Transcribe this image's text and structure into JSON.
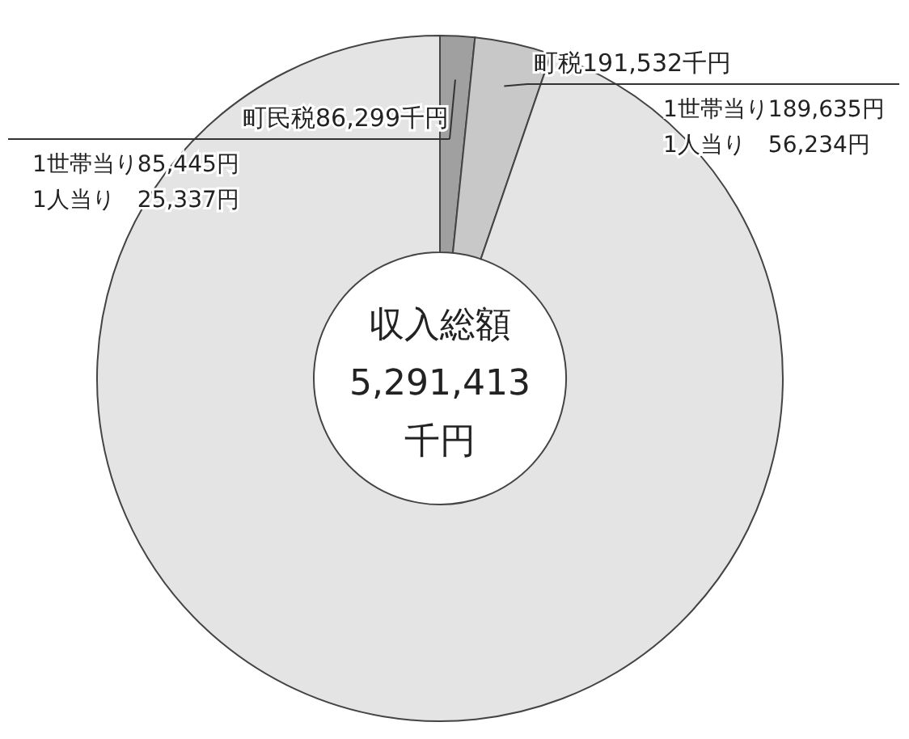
{
  "chart_data": {
    "type": "donut",
    "categories": [
      "町民税",
      "町税",
      null
    ],
    "values": [
      86299,
      191532,
      5013582
    ],
    "colors": [
      "#a0a0a0",
      "#c8c8c8",
      "#e4e4e4"
    ],
    "value_labels": [
      "86,299千円",
      "191,532千円",
      null
    ],
    "annotations": [
      {
        "text": "1世帯当り189,635円",
        "x": "町税"
      },
      {
        "text": "1人当り　56,234円",
        "x": "町税"
      },
      {
        "text": "1世帯当り85,445円",
        "x": "町民税"
      },
      {
        "text": "1人当り　25,337円",
        "x": "町民税"
      },
      "収入総額",
      "5,291,413",
      "千円"
    ]
  }
}
